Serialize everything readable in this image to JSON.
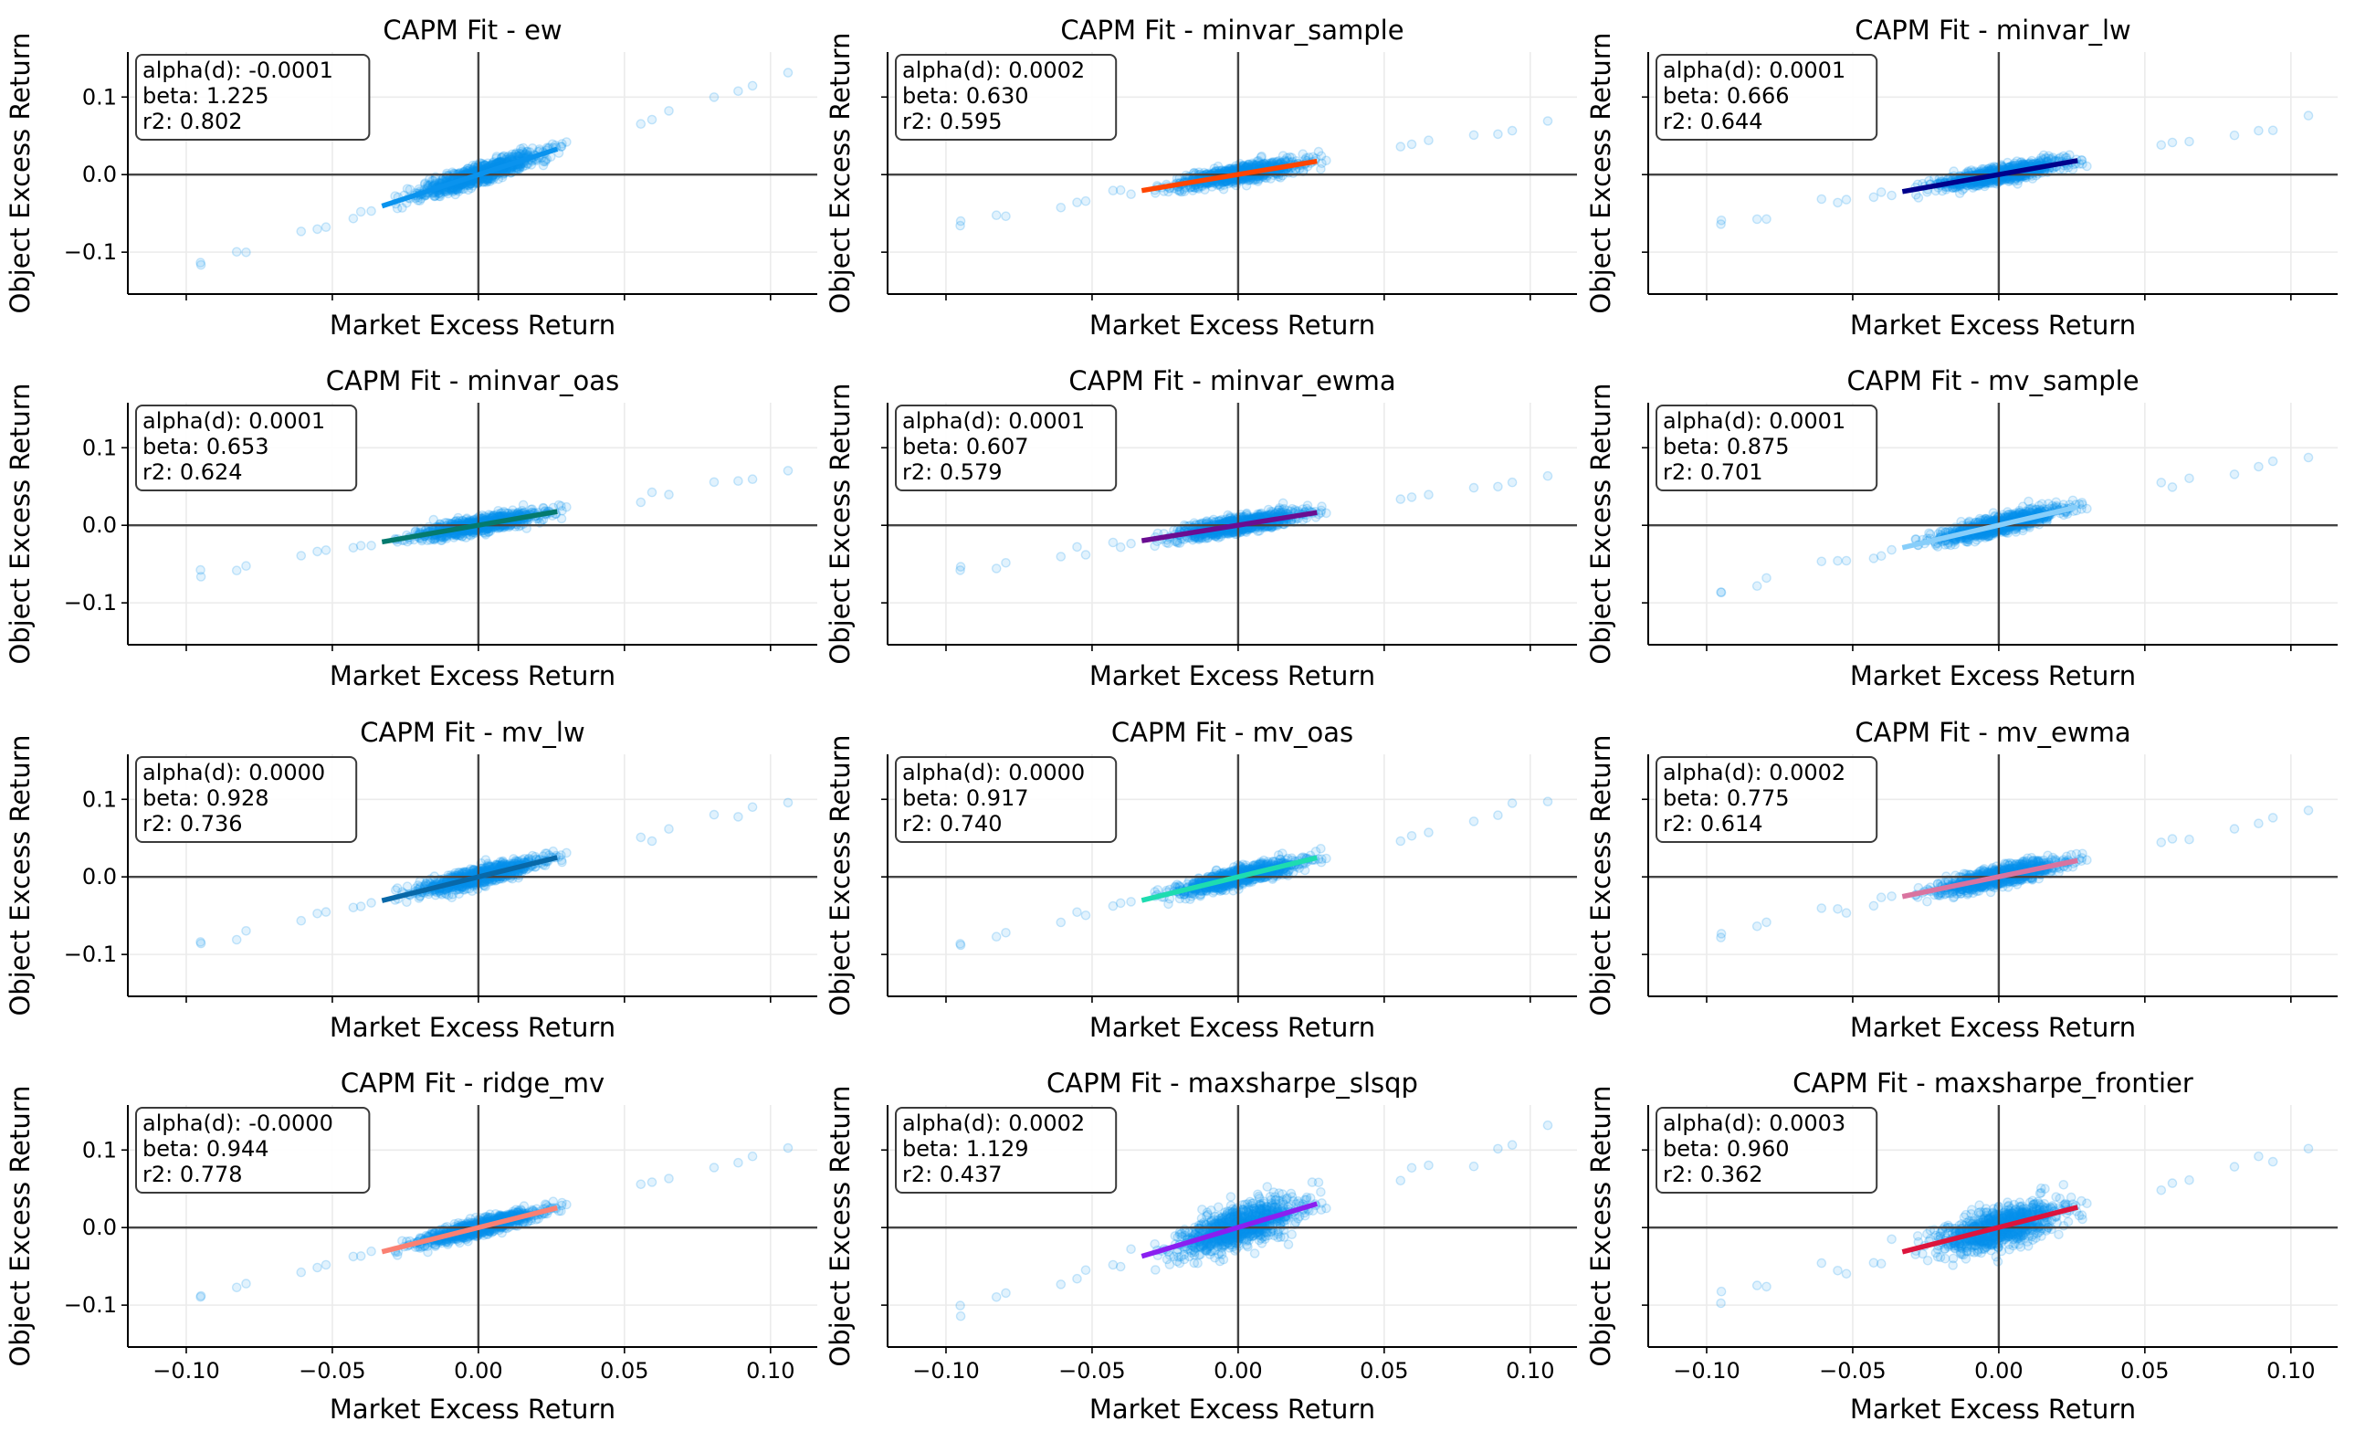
{
  "chart_data": {
    "type": "scatter",
    "layout": "4x3 grid of subplots",
    "shared": {
      "xlabel": "Market Excess Return",
      "ylabel": "Object Excess Return",
      "xlim": [
        -0.12,
        0.116
      ],
      "ylim": [
        -0.154,
        0.158
      ],
      "xticks": [
        -0.1,
        -0.05,
        0.0,
        0.05,
        0.1
      ],
      "xtick_labels": [
        "−0.10",
        "−0.05",
        "0.00",
        "0.05",
        "0.10"
      ],
      "yticks": [
        -0.1,
        0.0,
        0.1
      ],
      "ytick_labels": [
        "−0.1",
        "0.0",
        "0.1"
      ],
      "grid": true,
      "reference_lines": "x=0 and y=0",
      "scatter_color": "#0a93ee",
      "fit_x_range": [
        -0.033,
        0.027
      ],
      "stats_box_placement": "top-left"
    },
    "panels": [
      {
        "title": "CAPM Fit - ew",
        "alpha": "alpha(d): -0.0001",
        "beta_label": "beta: 1.225",
        "r2_label": "r2: 0.802",
        "beta": 1.225,
        "r2": 0.802,
        "alpha_d": -0.0001,
        "line_color": "#0a93ee"
      },
      {
        "title": "CAPM Fit - minvar_sample",
        "alpha": "alpha(d): 0.0002",
        "beta_label": "beta: 0.630",
        "r2_label": "r2: 0.595",
        "beta": 0.63,
        "r2": 0.595,
        "alpha_d": 0.0002,
        "line_color": "#ff4500"
      },
      {
        "title": "CAPM Fit - minvar_lw",
        "alpha": "alpha(d): 0.0001",
        "beta_label": "beta: 0.666",
        "r2_label": "r2: 0.644",
        "beta": 0.666,
        "r2": 0.644,
        "alpha_d": 0.0001,
        "line_color": "#00008b"
      },
      {
        "title": "CAPM Fit - minvar_oas",
        "alpha": "alpha(d): 0.0001",
        "beta_label": "beta: 0.653",
        "r2_label": "r2: 0.624",
        "beta": 0.653,
        "r2": 0.624,
        "alpha_d": 0.0001,
        "line_color": "#047a6e"
      },
      {
        "title": "CAPM Fit - minvar_ewma",
        "alpha": "alpha(d): 0.0001",
        "beta_label": "beta: 0.607",
        "r2_label": "r2: 0.579",
        "beta": 0.607,
        "r2": 0.579,
        "alpha_d": 0.0001,
        "line_color": "#6a0d91"
      },
      {
        "title": "CAPM Fit - mv_sample",
        "alpha": "alpha(d): 0.0001",
        "beta_label": "beta: 0.875",
        "r2_label": "r2: 0.701",
        "beta": 0.875,
        "r2": 0.701,
        "alpha_d": 0.0001,
        "line_color": "#87cefa"
      },
      {
        "title": "CAPM Fit - mv_lw",
        "alpha": "alpha(d): 0.0000",
        "beta_label": "beta: 0.928",
        "r2_label": "r2: 0.736",
        "beta": 0.928,
        "r2": 0.736,
        "alpha_d": 0.0,
        "line_color": "#0868a8"
      },
      {
        "title": "CAPM Fit - mv_oas",
        "alpha": "alpha(d): 0.0000",
        "beta_label": "beta: 0.917",
        "r2_label": "r2: 0.740",
        "beta": 0.917,
        "r2": 0.74,
        "alpha_d": 0.0,
        "line_color": "#1edcb0"
      },
      {
        "title": "CAPM Fit - mv_ewma",
        "alpha": "alpha(d): 0.0002",
        "beta_label": "beta: 0.775",
        "r2_label": "r2: 0.614",
        "beta": 0.775,
        "r2": 0.614,
        "alpha_d": 0.0002,
        "line_color": "#d9739f"
      },
      {
        "title": "CAPM Fit - ridge_mv",
        "alpha": "alpha(d): -0.0000",
        "beta_label": "beta: 0.944",
        "r2_label": "r2: 0.778",
        "beta": 0.944,
        "r2": 0.778,
        "alpha_d": -0.0,
        "line_color": "#fa8072"
      },
      {
        "title": "CAPM Fit - maxsharpe_slsqp",
        "alpha": "alpha(d): 0.0002",
        "beta_label": "beta: 1.129",
        "r2_label": "r2: 0.437",
        "beta": 1.129,
        "r2": 0.437,
        "alpha_d": 0.0002,
        "line_color": "#8a1ff0"
      },
      {
        "title": "CAPM Fit - maxsharpe_frontier",
        "alpha": "alpha(d): 0.0003",
        "beta_label": "beta: 0.960",
        "r2_label": "r2: 0.362",
        "beta": 0.96,
        "r2": 0.362,
        "alpha_d": 0.0003,
        "line_color": "#dc143c"
      }
    ]
  }
}
